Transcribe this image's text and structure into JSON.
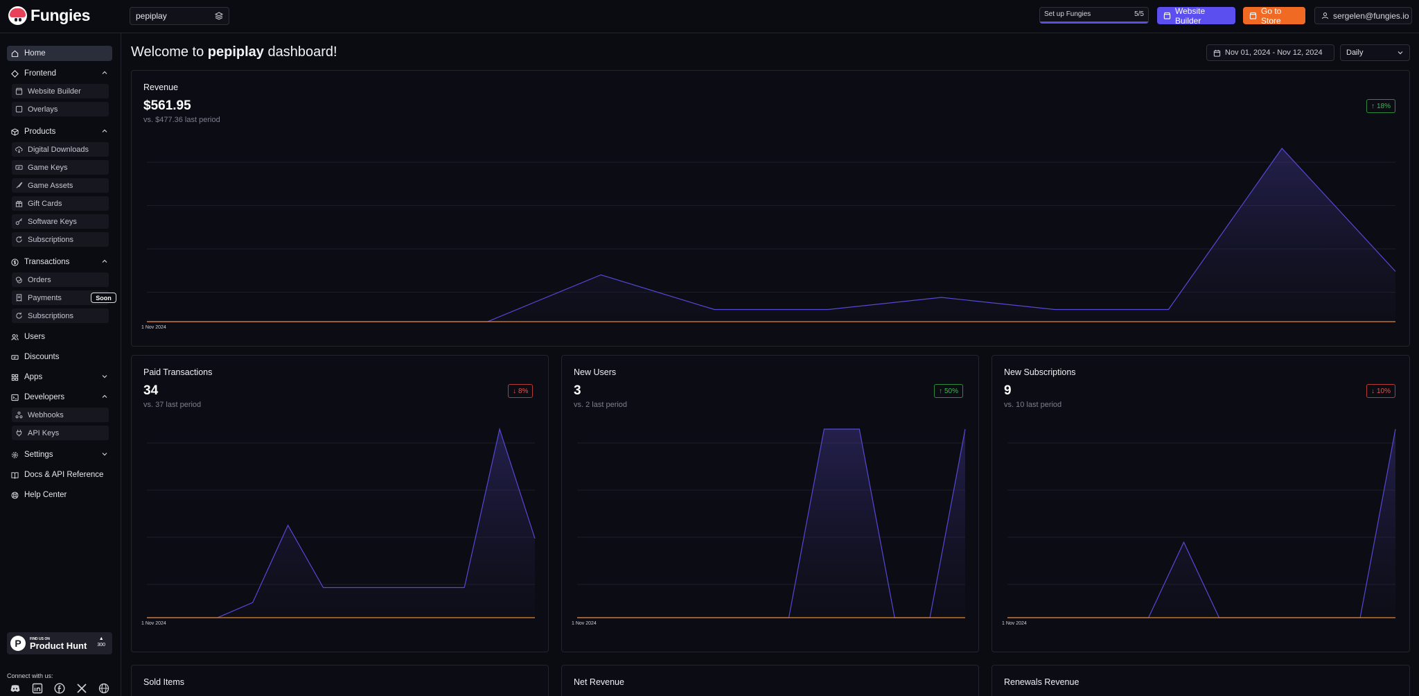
{
  "brand": {
    "name": "Fungies"
  },
  "topbar": {
    "store": "pepiplay",
    "setup_label": "Set up Fungies",
    "setup_count": "5/5",
    "setup_progress": 1.0,
    "builder_label": "Website Builder",
    "store_label": "Go to Store",
    "user_email": "sergelen@fungies.io"
  },
  "sidebar": {
    "home": "Home",
    "frontend": {
      "label": "Frontend",
      "items": [
        "Website Builder",
        "Overlays"
      ]
    },
    "products": {
      "label": "Products",
      "items": [
        "Digital Downloads",
        "Game Keys",
        "Game Assets",
        "Gift Cards",
        "Software Keys",
        "Subscriptions"
      ]
    },
    "transactions": {
      "label": "Transactions",
      "items": [
        "Orders",
        "Payments",
        "Subscriptions"
      ],
      "soon": "Soon"
    },
    "users": "Users",
    "discounts": "Discounts",
    "apps": "Apps",
    "developers": {
      "label": "Developers",
      "items": [
        "Webhooks",
        "API Keys"
      ]
    },
    "settings": "Settings",
    "docs": "Docs & API Reference",
    "help": "Help Center",
    "producthunt": {
      "small": "FIND US ON",
      "big": "Product Hunt",
      "votes": "300"
    },
    "connect": "Connect with us:",
    "socials": [
      "discord-icon",
      "linkedin-icon",
      "facebook-icon",
      "x-icon",
      "globe-icon"
    ]
  },
  "main": {
    "welcome_prefix": "Welcome to ",
    "welcome_store": "pepiplay",
    "welcome_suffix": " dashboard!",
    "date_range": "Nov 01, 2024 - Nov 12, 2024",
    "period": "Daily"
  },
  "cards": {
    "revenue": {
      "title": "Revenue",
      "value": "$561.95",
      "prev": "vs. $477.36 last period",
      "change": "18%",
      "direction": "up"
    },
    "paid": {
      "title": "Paid Transactions",
      "value": "34",
      "prev": "vs. 37 last period",
      "change": "8%",
      "direction": "down"
    },
    "users": {
      "title": "New Users",
      "value": "3",
      "prev": "vs. 2 last period",
      "change": "50%",
      "direction": "up"
    },
    "subs": {
      "title": "New Subscriptions",
      "value": "9",
      "prev": "vs. 10 last period",
      "change": "10%",
      "direction": "down"
    },
    "sold": {
      "title": "Sold Items"
    },
    "net": {
      "title": "Net Revenue"
    },
    "renewals": {
      "title": "Renewals Revenue"
    }
  },
  "colors": {
    "accent": "#5b4ff0",
    "store_button": "#f06a24",
    "up": "#3fb950",
    "down": "#e5534b",
    "series_line": "#5548d6",
    "baseline": "#e8862a"
  },
  "chart_data": [
    {
      "type": "area",
      "name": "Revenue",
      "x_tick": "1 Nov 2024",
      "values": [
        0,
        0,
        0,
        0,
        0.27,
        0.07,
        0.07,
        0.14,
        0.07,
        0.07,
        1.0,
        0.29
      ]
    },
    {
      "type": "area",
      "name": "Paid Transactions",
      "x_tick": "1 Nov 2024",
      "values": [
        0,
        0,
        0,
        0.08,
        0.49,
        0.16,
        0.16,
        0.16,
        0.16,
        0.16,
        1.0,
        0.42
      ]
    },
    {
      "type": "area",
      "name": "New Users",
      "x_tick": "1 Nov 2024",
      "values": [
        0,
        0,
        0,
        0,
        0,
        0,
        0,
        1.0,
        1.0,
        0,
        0,
        1.0
      ]
    },
    {
      "type": "area",
      "name": "New Subscriptions",
      "x_tick": "1 Nov 2024",
      "values": [
        0,
        0,
        0,
        0,
        0,
        0.4,
        0,
        0,
        0,
        0,
        0,
        1.0
      ]
    }
  ]
}
